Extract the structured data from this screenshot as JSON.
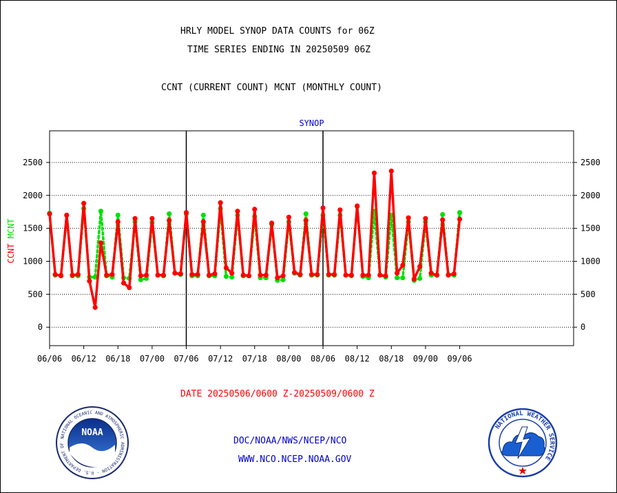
{
  "header": {
    "title_line1": "HRLY MODEL SYNOP DATA COUNTS for 06Z",
    "title_line2": "TIME SERIES ENDING IN 20250509 06Z",
    "subtitle": "CCNT (CURRENT COUNT) MCNT (MONTHLY COUNT)"
  },
  "footer": {
    "date_range": "DATE 20250506/0600 Z-20250509/0600 Z",
    "org": "DOC/NOAA/NWS/NCEP/NCO",
    "url": "WWW.NCO.NCEP.NOAA.GOV"
  },
  "logos": {
    "noaa": {
      "text": "NOAA",
      "ring_text": "NATIONAL OCEANIC AND ATMOSPHERIC ADMINISTRATION · U.S. DEPARTMENT OF COMMERCE"
    },
    "nws": {
      "ring_text": "NATIONAL WEATHER SERVICE"
    }
  },
  "colors": {
    "ccnt": "#ff0000",
    "mcnt": "#00e000",
    "panel_label": "#0000cc",
    "footer_text": "#0000cc"
  },
  "chart_data": {
    "type": "line",
    "title": "SYNOP",
    "ylabel_parts": [
      {
        "text": "CCNT",
        "color": "#ff0000"
      },
      {
        "text": "MCNT",
        "color": "#00e000"
      }
    ],
    "ylim": [
      -280,
      2980
    ],
    "yticks": [
      0,
      500,
      1000,
      1500,
      2000,
      2500
    ],
    "xlim": [
      0,
      92
    ],
    "xticks": [
      {
        "x": 0,
        "label": "06/06"
      },
      {
        "x": 6,
        "label": "06/12"
      },
      {
        "x": 12,
        "label": "06/18"
      },
      {
        "x": 18,
        "label": "07/00"
      },
      {
        "x": 24,
        "label": "07/06"
      },
      {
        "x": 30,
        "label": "07/12"
      },
      {
        "x": 36,
        "label": "07/18"
      },
      {
        "x": 42,
        "label": "08/00"
      },
      {
        "x": 48,
        "label": "08/06"
      },
      {
        "x": 54,
        "label": "08/12"
      },
      {
        "x": 60,
        "label": "08/18"
      },
      {
        "x": 66,
        "label": "09/00"
      },
      {
        "x": 72,
        "label": "09/06"
      }
    ],
    "grid": true,
    "x": [
      0,
      1,
      2,
      3,
      4,
      5,
      6,
      7,
      8,
      9,
      10,
      11,
      12,
      13,
      14,
      15,
      16,
      17,
      18,
      19,
      20,
      21,
      22,
      23,
      24,
      25,
      26,
      27,
      28,
      29,
      30,
      31,
      32,
      33,
      34,
      35,
      36,
      37,
      38,
      39,
      40,
      41,
      42,
      43,
      44,
      45,
      46,
      47,
      48,
      49,
      50,
      51,
      52,
      53,
      54,
      55,
      56,
      57,
      58,
      59,
      60,
      61,
      62,
      63,
      64,
      65,
      66,
      67,
      68,
      69,
      70,
      71,
      72
    ],
    "series": [
      {
        "name": "CCNT",
        "color": "#ff0000",
        "values": [
          1720,
          800,
          780,
          1700,
          790,
          800,
          1880,
          700,
          300,
          1280,
          790,
          800,
          1600,
          670,
          600,
          1650,
          780,
          790,
          1650,
          790,
          790,
          1620,
          820,
          810,
          1740,
          800,
          800,
          1600,
          790,
          810,
          1890,
          900,
          820,
          1760,
          790,
          780,
          1790,
          790,
          790,
          1580,
          750,
          780,
          1670,
          830,
          800,
          1620,
          800,
          800,
          1810,
          800,
          800,
          1780,
          790,
          790,
          1840,
          790,
          790,
          2340,
          790,
          780,
          2370,
          820,
          940,
          1660,
          730,
          920,
          1650,
          820,
          790,
          1630,
          790,
          810,
          1640
        ]
      },
      {
        "name": "MCNT",
        "color": "#00e000",
        "values": [
          1730,
          790,
          790,
          1700,
          780,
          780,
          1800,
          760,
          760,
          1760,
          780,
          760,
          1700,
          750,
          740,
          1600,
          720,
          740,
          1590,
          790,
          780,
          1720,
          820,
          800,
          1720,
          780,
          780,
          1700,
          780,
          780,
          1800,
          770,
          760,
          1700,
          780,
          780,
          1680,
          750,
          750,
          1560,
          710,
          720,
          1600,
          820,
          790,
          1720,
          790,
          790,
          1700,
          790,
          790,
          1700,
          790,
          780,
          1830,
          770,
          750,
          1760,
          790,
          760,
          1700,
          750,
          750,
          1600,
          710,
          740,
          1600,
          790,
          790,
          1710,
          800,
          790,
          1740
        ]
      }
    ]
  }
}
